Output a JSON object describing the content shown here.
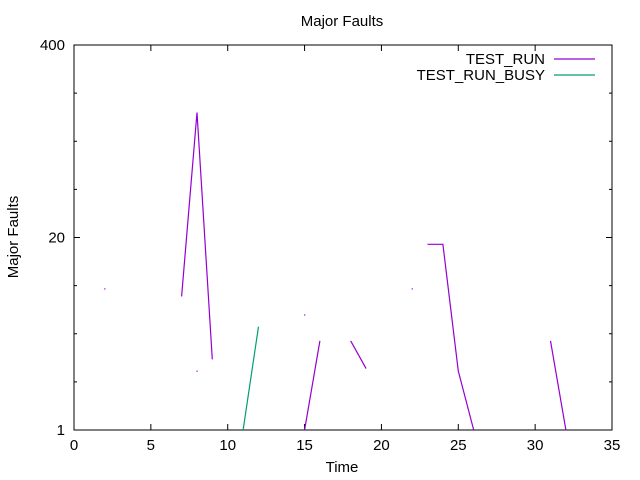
{
  "chart_data": {
    "type": "line",
    "title": "Major Faults",
    "xlabel": "Time",
    "ylabel": "Major Faults",
    "xlim": [
      0,
      35
    ],
    "ylim": [
      1,
      400
    ],
    "yscale": "log",
    "xticks": [
      0,
      5,
      10,
      15,
      20,
      25,
      30,
      35
    ],
    "xtick_labels": [
      "0",
      "5",
      "10",
      "15",
      "20",
      "25",
      "30",
      "35"
    ],
    "yticks": [
      1,
      20,
      400
    ],
    "ytick_labels": [
      "1",
      "20",
      "400"
    ],
    "grid": false,
    "legend_position": "top-right",
    "series": [
      {
        "name": "TEST_RUN",
        "color": "#9400d3",
        "segments": [
          [
            [
              2,
              9
            ]
          ],
          [
            [
              7,
              8
            ],
            [
              8,
              140
            ],
            [
              9,
              3
            ]
          ],
          [
            [
              8,
              2.5
            ]
          ],
          [
            [
              15,
              1
            ],
            [
              16,
              4
            ]
          ],
          [
            [
              15,
              6
            ]
          ],
          [
            [
              18,
              4
            ],
            [
              19,
              2.6
            ]
          ],
          [
            [
              22,
              9
            ]
          ],
          [
            [
              23,
              18
            ],
            [
              24,
              18
            ],
            [
              25,
              2.5
            ],
            [
              26,
              1
            ]
          ],
          [
            [
              31,
              4
            ],
            [
              32,
              1
            ]
          ]
        ]
      },
      {
        "name": "TEST_RUN_BUSY",
        "color": "#009e73",
        "segments": [
          [
            [
              11,
              1
            ],
            [
              12,
              5
            ]
          ]
        ]
      }
    ]
  }
}
